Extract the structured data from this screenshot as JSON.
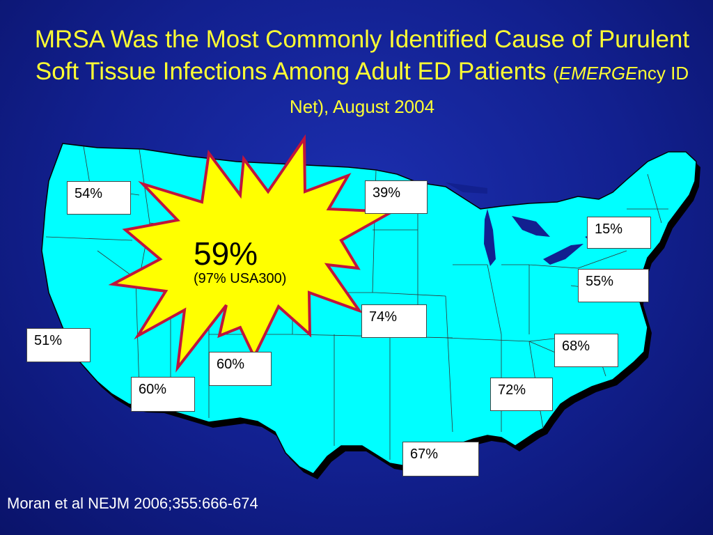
{
  "slide": {
    "title_main": "MRSA Was the Most Commonly Identified Cause of Purulent Soft Tissue Infections Among Adult ED Patients ",
    "title_paren_open": "(",
    "title_italic": "EMERGE",
    "title_rest": "ncy ID Net), August 2004",
    "citation": "Moran et al NEJM 2006;355:666-674"
  },
  "burst": {
    "value": "59%",
    "subtext": "(97% USA300)"
  },
  "sites": [
    {
      "id": "site-1",
      "value": "54%"
    },
    {
      "id": "site-2",
      "value": "39%"
    },
    {
      "id": "site-3",
      "value": "15%"
    },
    {
      "id": "site-4",
      "value": "55%"
    },
    {
      "id": "site-5",
      "value": "74%"
    },
    {
      "id": "site-6",
      "value": "68%"
    },
    {
      "id": "site-7",
      "value": "51%"
    },
    {
      "id": "site-8",
      "value": "60%"
    },
    {
      "id": "site-9",
      "value": "60%"
    },
    {
      "id": "site-10",
      "value": "72%"
    },
    {
      "id": "site-11",
      "value": "67%"
    }
  ],
  "colors": {
    "background": "#12208f",
    "title": "#ffff33",
    "map_fill": "#00ffff",
    "map_shadow": "#000000",
    "burst_fill": "#ffff00",
    "burst_stroke": "#c0143c",
    "citation": "#ffffff"
  }
}
